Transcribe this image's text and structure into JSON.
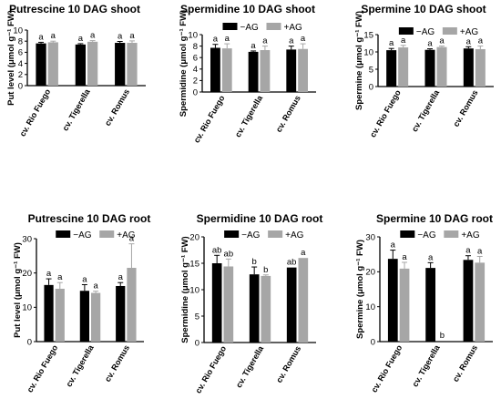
{
  "colors": {
    "neg_ag": "#000000",
    "pos_ag": "#a6a6a6",
    "axis": "#000000"
  },
  "chart_data": [
    {
      "type": "bar",
      "title": "Putrescine 10 DAG shoot",
      "ylabel": "Put level (μmol g⁻¹ FW)",
      "ylim": [
        0,
        10
      ],
      "yticks": [
        0,
        2,
        4,
        6,
        8,
        10
      ],
      "categories": [
        "cv. Rio Fuego",
        "cv. Tigerella",
        "cv. Romus"
      ],
      "series": [
        {
          "name": "−AG",
          "values": [
            7.6,
            7.4,
            7.7
          ],
          "errors": [
            0.2,
            0.15,
            0.25
          ],
          "letters": [
            "a",
            "a",
            "a"
          ]
        },
        {
          "name": "+AG",
          "values": [
            7.8,
            7.9,
            7.7
          ],
          "errors": [
            0.2,
            0.2,
            0.35
          ],
          "letters": [
            "a",
            "a",
            "a"
          ]
        }
      ],
      "legend": "none"
    },
    {
      "type": "bar",
      "title": "Spermidine 10 DAG shoot",
      "ylabel": "Spermidine (μmol g⁻¹ FW)",
      "ylim": [
        0,
        10
      ],
      "yticks": [
        0,
        2,
        4,
        6,
        8,
        10
      ],
      "categories": [
        "cv. Rio Fuego",
        "cv. Tigerella",
        "cv. Romus"
      ],
      "series": [
        {
          "name": "−AG",
          "values": [
            7.7,
            7.0,
            7.4
          ],
          "errors": [
            0.6,
            0.15,
            0.6
          ],
          "letters": [
            "a",
            "a",
            "a"
          ]
        },
        {
          "name": "+AG",
          "values": [
            7.6,
            7.3,
            7.5
          ],
          "errors": [
            0.8,
            0.7,
            0.9
          ],
          "letters": [
            "a",
            "a",
            "a"
          ]
        }
      ],
      "legend": "top"
    },
    {
      "type": "bar",
      "title": "Spermine 10 DAG shoot",
      "ylabel": "Spermine (μmol g⁻¹ FW)",
      "ylim": [
        0,
        15
      ],
      "yticks": [
        0,
        5,
        10,
        15
      ],
      "categories": [
        "cv. Rio Fuego",
        "cv. Tigerella",
        "cv. Romus"
      ],
      "series": [
        {
          "name": "−AG",
          "values": [
            10.5,
            10.6,
            11.0
          ],
          "errors": [
            0.5,
            0.3,
            0.5
          ],
          "letters": [
            "a",
            "a",
            "a"
          ]
        },
        {
          "name": "+AG",
          "values": [
            11.3,
            11.4,
            10.8
          ],
          "errors": [
            0.6,
            0.3,
            0.9
          ],
          "letters": [
            "a",
            "a",
            "a"
          ]
        }
      ],
      "legend": "top"
    },
    {
      "type": "bar",
      "title": "Putrescine 10 DAG root",
      "ylabel": "Put level (μmol g⁻¹ FW)",
      "ylim": [
        0,
        30
      ],
      "yticks": [
        0,
        10,
        20,
        30
      ],
      "categories": [
        "cv. Rio Fuego",
        "cv. Tigerella",
        "cv. Romus"
      ],
      "series": [
        {
          "name": "−AG",
          "values": [
            16.5,
            14.8,
            16.2
          ],
          "errors": [
            1.8,
            1.8,
            1.0
          ],
          "letters": [
            "a",
            "a",
            "a"
          ]
        },
        {
          "name": "+AG",
          "values": [
            15.4,
            14.2,
            21.5
          ],
          "errors": [
            1.8,
            0.5,
            7.0
          ],
          "letters": [
            "a",
            "a",
            "a"
          ]
        }
      ],
      "legend": "top"
    },
    {
      "type": "bar",
      "title": "Spermidine 10 DAG root",
      "ylabel": "Spermidine (μmol g⁻¹ FW)",
      "ylim": [
        0,
        20
      ],
      "yticks": [
        0,
        5,
        10,
        15,
        20
      ],
      "categories": [
        "cv. Rio Fuego",
        "cv. Tigerella",
        "cv. Romus"
      ],
      "series": [
        {
          "name": "−AG",
          "values": [
            15.0,
            12.9,
            14.2
          ],
          "errors": [
            1.5,
            1.4,
            0.0
          ],
          "letters": [
            "ab",
            "b",
            "ab"
          ]
        },
        {
          "name": "+AG",
          "values": [
            14.4,
            12.6,
            16.0
          ],
          "errors": [
            1.4,
            0.2,
            0.0
          ],
          "letters": [
            "ab",
            "b",
            "a"
          ]
        }
      ],
      "legend": "top"
    },
    {
      "type": "bar",
      "title": "Spermine 10 DAG root",
      "ylabel": "Spermine (μmol g⁻¹ FW)",
      "ylim": [
        0,
        30
      ],
      "yticks": [
        0,
        10,
        20,
        30
      ],
      "categories": [
        "cv. Rio Fuego",
        "cv. Tigerella",
        "cv. Romus"
      ],
      "series": [
        {
          "name": "−AG",
          "values": [
            23.7,
            21.1,
            23.4
          ],
          "errors": [
            2.5,
            1.5,
            1.2
          ],
          "letters": [
            "a",
            "a",
            "a"
          ]
        },
        {
          "name": "+AG",
          "values": [
            20.9,
            0,
            22.6
          ],
          "errors": [
            1.8,
            0,
            1.8
          ],
          "letters": [
            "a",
            "b",
            "a"
          ]
        }
      ],
      "legend": "top"
    }
  ]
}
